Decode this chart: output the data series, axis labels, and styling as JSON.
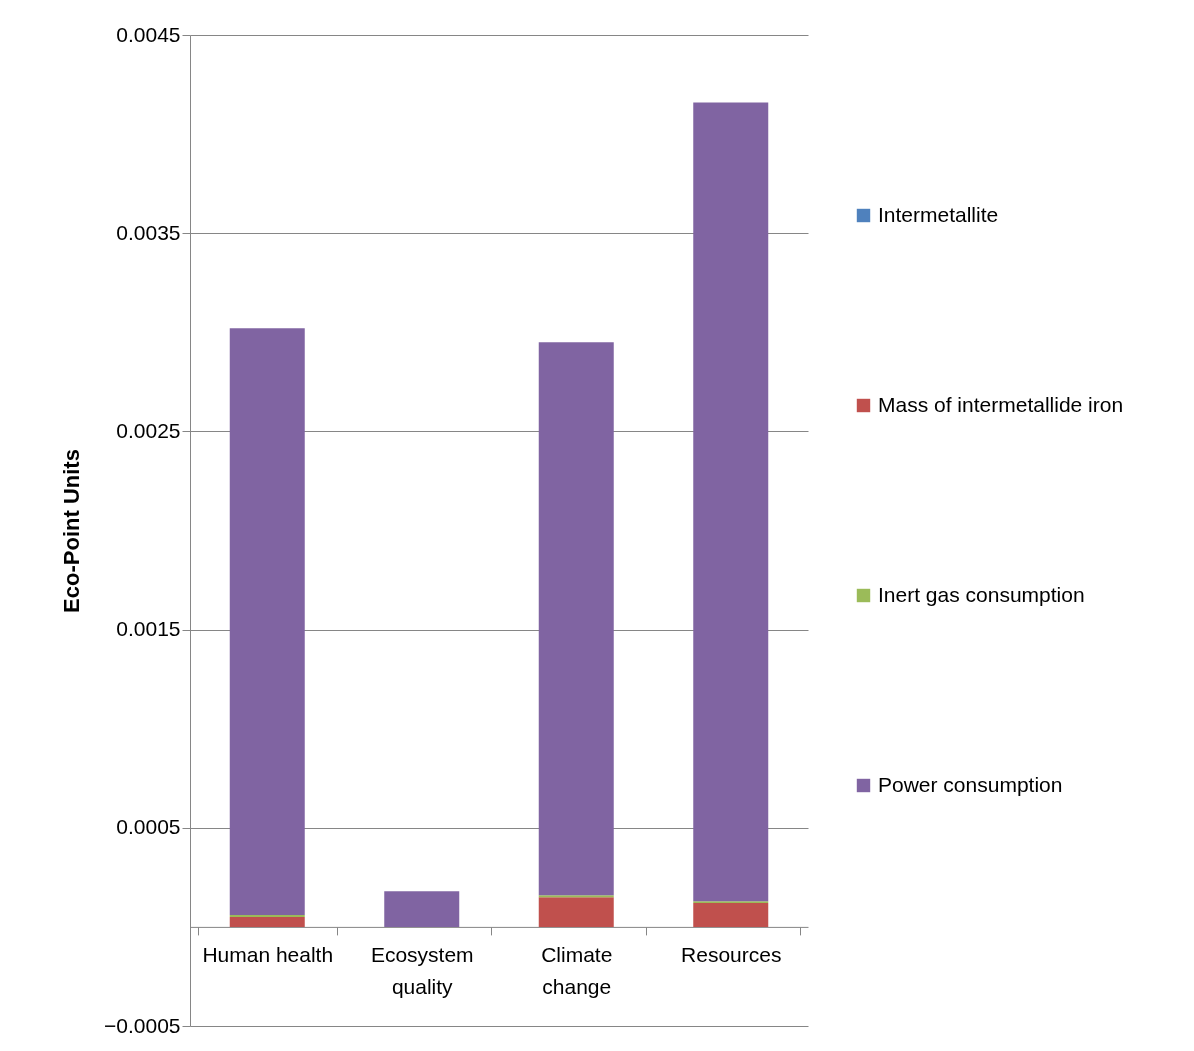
{
  "chart_data": {
    "type": "bar",
    "stacked": true,
    "ylabel": "Eco-Point Units",
    "categories": [
      "Human health",
      "Ecosystem quality",
      "Climate change",
      "Resources"
    ],
    "series": [
      {
        "name": "Intermetallite",
        "color": "#4f81bd",
        "values": [
          0,
          0,
          0,
          0
        ]
      },
      {
        "name": "Mass of intermetallide iron",
        "color": "#c0504d",
        "values": [
          5e-05,
          0,
          0.00015,
          0.00012
        ]
      },
      {
        "name": "Inert gas consumption",
        "color": "#9bbb59",
        "values": [
          1e-05,
          0,
          1e-05,
          1e-05
        ]
      },
      {
        "name": "Power consumption",
        "color": "#8064a2",
        "values": [
          0.00296,
          0.00018,
          0.00279,
          0.00403
        ]
      }
    ],
    "ylim": [
      -0.0005,
      0.0045
    ],
    "yticks": [
      -0.0005,
      0.0005,
      0.0015,
      0.0025,
      0.0035,
      0.0045
    ],
    "grid": "y",
    "legend": "right"
  }
}
